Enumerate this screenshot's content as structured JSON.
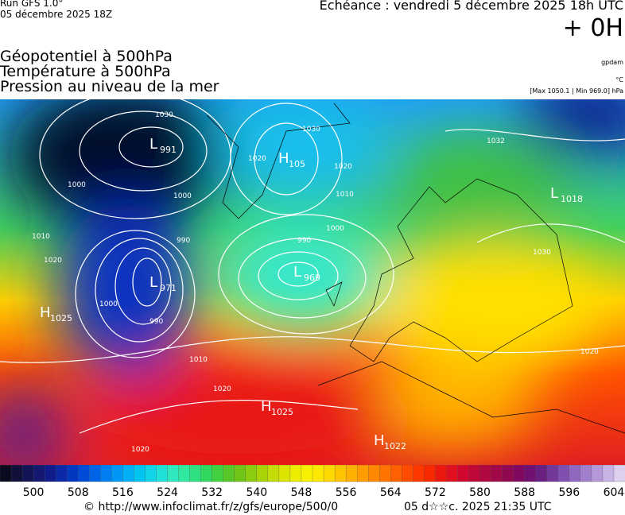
{
  "header": {
    "run": "Run GFS 1.0°",
    "date": "05 décembre 2025 18Z",
    "echeance": "Echéance : vendredi 5 décembre 2025 18h UTC",
    "offset": "+ 0H"
  },
  "fields": [
    "Géopotentiel à 500hPa",
    "Température à 500hPa",
    "Pression au niveau de la mer"
  ],
  "units": {
    "geopotential": "gpdam",
    "temperature": "°C",
    "pressure": "[Max 1050.1 | Min 969.0] hPa"
  },
  "centers": [
    {
      "letter": "L",
      "value": "991"
    },
    {
      "letter": "L",
      "value": "971"
    },
    {
      "letter": "L",
      "value": "969"
    },
    {
      "letter": "H",
      "value": "1025"
    },
    {
      "letter": "H",
      "value": "105"
    },
    {
      "letter": "L",
      "value": "1018"
    },
    {
      "letter": "H",
      "value": "1025"
    },
    {
      "letter": "H",
      "value": "1022"
    }
  ],
  "isobar_labels": [
    "1030",
    "1000",
    "1000",
    "1010",
    "1020",
    "990",
    "1000",
    "990",
    "1020",
    "1010",
    "1000",
    "990",
    "1020",
    "1010",
    "1020",
    "1030",
    "1020",
    "1032",
    "1030",
    "1020"
  ],
  "colorbar": {
    "labels": [
      "500",
      "508",
      "516",
      "524",
      "532",
      "540",
      "548",
      "556",
      "564",
      "572",
      "580",
      "588",
      "596",
      "604"
    ],
    "colors": [
      "#0a0a1e",
      "#10103a",
      "#121455",
      "#14186e",
      "#101c8c",
      "#0a28a8",
      "#0038c0",
      "#004cd6",
      "#0064e6",
      "#0080f0",
      "#0098f4",
      "#00b0f4",
      "#00c4f0",
      "#10d4e8",
      "#20e0d8",
      "#30e8c0",
      "#30e8a0",
      "#30e080",
      "#30d860",
      "#40d040",
      "#58c828",
      "#70c418",
      "#8ccc10",
      "#a8d408",
      "#c4dc08",
      "#dce400",
      "#ecec00",
      "#f8f000",
      "#ffe800",
      "#ffd800",
      "#ffc400",
      "#ffb000",
      "#ff9c00",
      "#ff8800",
      "#ff7400",
      "#ff6000",
      "#ff4c00",
      "#ff3800",
      "#f82800",
      "#ec1810",
      "#e01020",
      "#d00830",
      "#c00838",
      "#b00840",
      "#a00848",
      "#900850",
      "#800860",
      "#701070",
      "#6a2080",
      "#74389a",
      "#8050b0",
      "#9068c0",
      "#a080cc",
      "#b498d8",
      "#c8b4e4",
      "#dcd0ee"
    ]
  },
  "footer": {
    "url": "© http://www.infoclimat.fr/z/gfs/europe/500/0",
    "generated": "05 d☆☆c. 2025 21:35 UTC"
  }
}
